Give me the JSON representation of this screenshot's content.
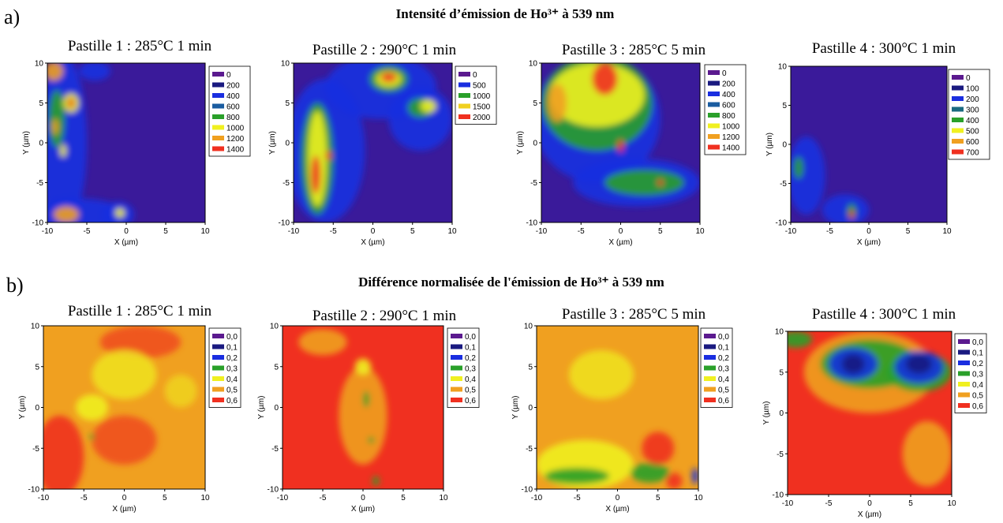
{
  "section_a": {
    "label": "a)",
    "title": "Intensité d’émission de Ho³⁺ à 539 nm",
    "panels": [
      {
        "title": "Pastille 1 : 285°C 1 min",
        "xlabel": "X (µm)",
        "ylabel": "Y (µm)",
        "xlim": [
          -10,
          10
        ],
        "ylim": [
          -10,
          10
        ],
        "xticks": [
          -10,
          -5,
          0,
          5,
          10
        ],
        "yticks": [
          -10,
          -5,
          0,
          5,
          10
        ],
        "legend": [
          {
            "label": "0",
            "color": "#5b1a8f"
          },
          {
            "label": "200",
            "color": "#1a1a80"
          },
          {
            "label": "400",
            "color": "#1a2ee0"
          },
          {
            "label": "600",
            "color": "#1a5ca0"
          },
          {
            "label": "800",
            "color": "#2aa02a"
          },
          {
            "label": "1000",
            "color": "#f0f020"
          },
          {
            "label": "1200",
            "color": "#f0a020"
          },
          {
            "label": "1400",
            "color": "#f03020"
          }
        ]
      },
      {
        "title": "Pastille 2 : 290°C 1 min",
        "xlabel": "X (µm)",
        "ylabel": "Y (µm)",
        "xlim": [
          -10,
          10
        ],
        "ylim": [
          -10,
          10
        ],
        "xticks": [
          -10,
          -5,
          0,
          5,
          10
        ],
        "yticks": [
          -10,
          -5,
          0,
          5,
          10
        ],
        "legend": [
          {
            "label": "0",
            "color": "#5b1a8f"
          },
          {
            "label": "500",
            "color": "#1a2ee0"
          },
          {
            "label": "1000",
            "color": "#2aa02a"
          },
          {
            "label": "1500",
            "color": "#f0d020"
          },
          {
            "label": "2000",
            "color": "#f03020"
          }
        ]
      },
      {
        "title": "Pastille 3 :  285°C 5 min",
        "xlabel": "X (µm)",
        "ylabel": "Y (µm)",
        "xlim": [
          -10,
          10
        ],
        "ylim": [
          -10,
          10
        ],
        "xticks": [
          -10,
          -5,
          0,
          5,
          10
        ],
        "yticks": [
          -10,
          -5,
          0,
          5,
          10
        ],
        "legend": [
          {
            "label": "0",
            "color": "#5b1a8f"
          },
          {
            "label": "200",
            "color": "#1a1a80"
          },
          {
            "label": "400",
            "color": "#1a2ee0"
          },
          {
            "label": "600",
            "color": "#1a5ca0"
          },
          {
            "label": "800",
            "color": "#2aa02a"
          },
          {
            "label": "1000",
            "color": "#f0f020"
          },
          {
            "label": "1200",
            "color": "#f0a020"
          },
          {
            "label": "1400",
            "color": "#f03020"
          }
        ]
      },
      {
        "title": "Pastille 4 : 300°C 1 min",
        "xlabel": "X (µm)",
        "ylabel": "Y (µm)",
        "xlim": [
          -10,
          10
        ],
        "ylim": [
          -10,
          10
        ],
        "xticks": [
          -10,
          -5,
          0,
          5,
          10
        ],
        "yticks": [
          -10,
          -5,
          0,
          5,
          10
        ],
        "legend": [
          {
            "label": "0",
            "color": "#5b1a8f"
          },
          {
            "label": "100",
            "color": "#1a1a80"
          },
          {
            "label": "200",
            "color": "#1a2ee0"
          },
          {
            "label": "300",
            "color": "#1a6a80"
          },
          {
            "label": "400",
            "color": "#2aa02a"
          },
          {
            "label": "500",
            "color": "#f0f020"
          },
          {
            "label": "600",
            "color": "#f0a020"
          },
          {
            "label": "700",
            "color": "#f03020"
          }
        ]
      }
    ]
  },
  "section_b": {
    "label": "b)",
    "title": "Différence normalisée de l'émission de Ho³⁺ à 539 nm",
    "panels": [
      {
        "title": "Pastille 1 : 285°C 1 min",
        "xlabel": "X (µm)",
        "ylabel": "Y (µm)",
        "xlim": [
          -10,
          10
        ],
        "ylim": [
          -10,
          10
        ],
        "xticks": [
          -10,
          -5,
          0,
          5,
          10
        ],
        "yticks": [
          -10,
          -5,
          0,
          5,
          10
        ],
        "legend": [
          {
            "label": "0,0",
            "color": "#5b1a8f"
          },
          {
            "label": "0,1",
            "color": "#1a1a80"
          },
          {
            "label": "0,2",
            "color": "#1a2ee0"
          },
          {
            "label": "0,3",
            "color": "#2aa02a"
          },
          {
            "label": "0,4",
            "color": "#f0f020"
          },
          {
            "label": "0,5",
            "color": "#f0a020"
          },
          {
            "label": "0,6",
            "color": "#f03020"
          }
        ]
      },
      {
        "title": "Pastille 2 : 290°C 1 min",
        "xlabel": "X (µm)",
        "ylabel": "Y (µm)",
        "xlim": [
          -10,
          10
        ],
        "ylim": [
          -10,
          10
        ],
        "xticks": [
          -10,
          -5,
          0,
          5,
          10
        ],
        "yticks": [
          -10,
          -5,
          0,
          5,
          10
        ],
        "legend": [
          {
            "label": "0,0",
            "color": "#5b1a8f"
          },
          {
            "label": "0,1",
            "color": "#1a1a80"
          },
          {
            "label": "0,2",
            "color": "#1a2ee0"
          },
          {
            "label": "0,3",
            "color": "#2aa02a"
          },
          {
            "label": "0,4",
            "color": "#f0f020"
          },
          {
            "label": "0,5",
            "color": "#f0a020"
          },
          {
            "label": "0,6",
            "color": "#f03020"
          }
        ]
      },
      {
        "title": "Pastille 3 :  285°C 5 min",
        "xlabel": "X (µm)",
        "ylabel": "Y (µm)",
        "xlim": [
          -10,
          10
        ],
        "ylim": [
          -10,
          10
        ],
        "xticks": [
          -10,
          -5,
          0,
          5,
          10
        ],
        "yticks": [
          -10,
          -5,
          0,
          5,
          10
        ],
        "legend": [
          {
            "label": "0,0",
            "color": "#5b1a8f"
          },
          {
            "label": "0,1",
            "color": "#1a1a80"
          },
          {
            "label": "0,2",
            "color": "#1a2ee0"
          },
          {
            "label": "0,3",
            "color": "#2aa02a"
          },
          {
            "label": "0,4",
            "color": "#f0f020"
          },
          {
            "label": "0,5",
            "color": "#f0a020"
          },
          {
            "label": "0,6",
            "color": "#f03020"
          }
        ]
      },
      {
        "title": "Pastille 4 : 300°C 1 min",
        "xlabel": "X (µm)",
        "ylabel": "Y (µm)",
        "xlim": [
          -10,
          10
        ],
        "ylim": [
          -10,
          10
        ],
        "xticks": [
          -10,
          -5,
          0,
          5,
          10
        ],
        "yticks": [
          -10,
          -5,
          0,
          5,
          10
        ],
        "legend": [
          {
            "label": "0,0",
            "color": "#5b1a8f"
          },
          {
            "label": "0,1",
            "color": "#1a1a80"
          },
          {
            "label": "0,2",
            "color": "#1a2ee0"
          },
          {
            "label": "0,3",
            "color": "#2aa02a"
          },
          {
            "label": "0,4",
            "color": "#f0f020"
          },
          {
            "label": "0,5",
            "color": "#f0a020"
          },
          {
            "label": "0,6",
            "color": "#f03020"
          }
        ]
      }
    ]
  }
}
